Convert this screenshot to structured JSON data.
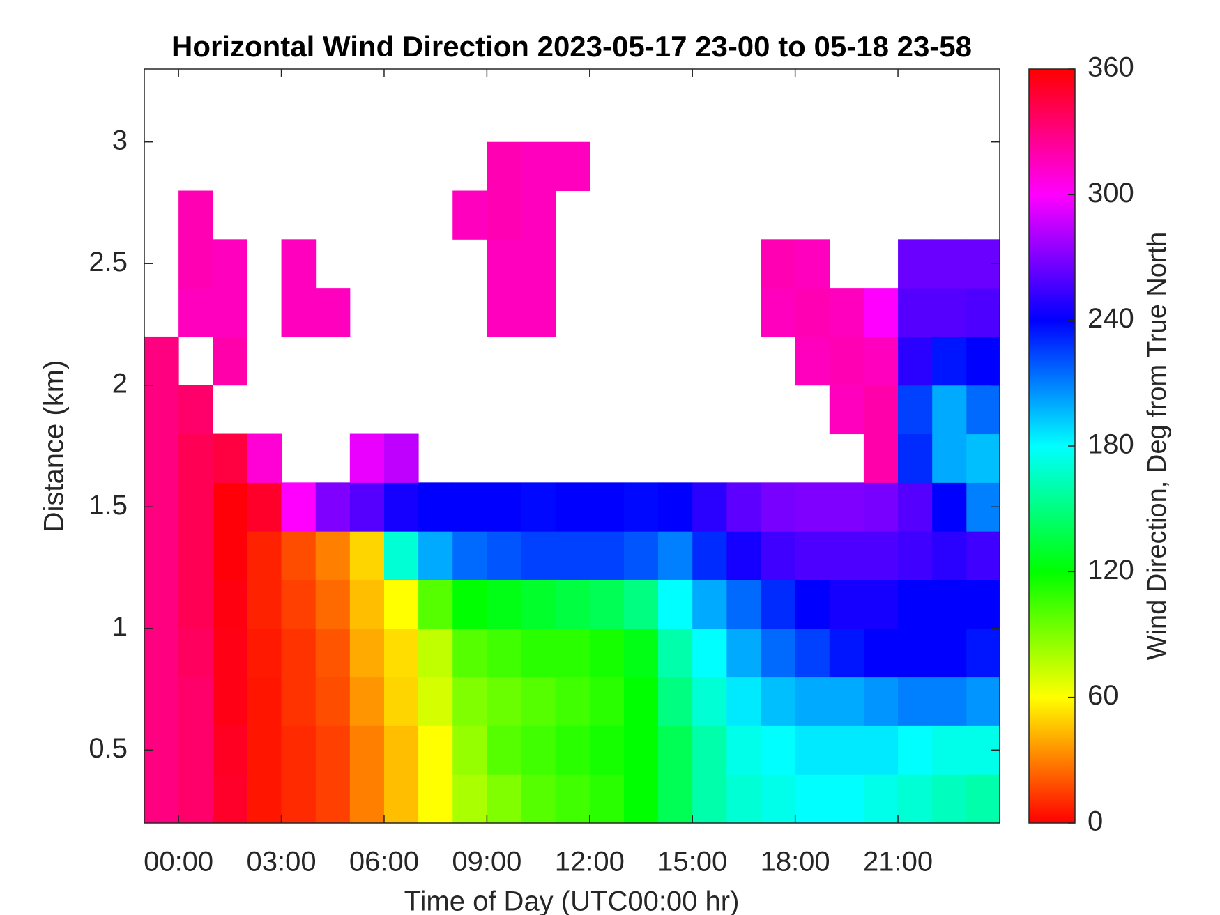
{
  "chart_data": {
    "type": "heatmap",
    "title": "Horizontal Wind Direction 2023-05-17 23-00 to 05-18 23-58",
    "xlabel": "Time of Day (UTC00:00 hr)",
    "ylabel": "Distance (km)",
    "colorbar_label": "Wind Direction, Deg from True North",
    "colormap": "hsv",
    "xlim": [
      -1,
      23.97
    ],
    "ylim": [
      0.2,
      3.3
    ],
    "clim": [
      0,
      360
    ],
    "xticks": [
      {
        "value": 0,
        "label": "00:00"
      },
      {
        "value": 3,
        "label": "03:00"
      },
      {
        "value": 6,
        "label": "06:00"
      },
      {
        "value": 9,
        "label": "09:00"
      },
      {
        "value": 12,
        "label": "12:00"
      },
      {
        "value": 15,
        "label": "15:00"
      },
      {
        "value": 18,
        "label": "18:00"
      },
      {
        "value": 21,
        "label": "21:00"
      }
    ],
    "yticks": [
      0.5,
      1,
      1.5,
      2,
      2.5,
      3
    ],
    "cticks": [
      0,
      60,
      120,
      180,
      240,
      300,
      360
    ],
    "x_edges": [
      -1,
      0,
      1,
      2,
      3,
      4,
      5,
      6,
      7,
      8,
      9,
      10,
      11,
      12,
      13,
      14,
      15,
      16,
      17,
      18,
      19,
      20,
      21,
      22,
      23,
      23.97
    ],
    "y_edges": [
      0.2,
      0.4,
      0.6,
      0.8,
      1,
      1.2,
      1.4,
      1.6,
      1.8,
      2,
      2.2,
      2.4,
      2.6,
      2.8,
      3
    ],
    "z": [
      [
        330,
        335,
        350,
        5,
        10,
        15,
        30,
        45,
        60,
        80,
        90,
        100,
        105,
        110,
        120,
        140,
        160,
        170,
        175,
        180,
        180,
        175,
        170,
        165,
        160
      ],
      [
        330,
        335,
        352,
        5,
        10,
        15,
        30,
        45,
        60,
        85,
        100,
        105,
        110,
        115,
        120,
        140,
        160,
        175,
        180,
        185,
        185,
        185,
        180,
        175,
        175
      ],
      [
        330,
        335,
        355,
        5,
        12,
        18,
        35,
        50,
        70,
        90,
        95,
        100,
        105,
        110,
        120,
        150,
        170,
        185,
        195,
        200,
        200,
        205,
        210,
        210,
        205
      ],
      [
        330,
        338,
        355,
        6,
        12,
        20,
        40,
        52,
        75,
        100,
        105,
        110,
        110,
        115,
        125,
        160,
        180,
        200,
        215,
        225,
        235,
        240,
        240,
        240,
        235
      ],
      [
        330,
        340,
        356,
        8,
        15,
        25,
        45,
        60,
        100,
        120,
        125,
        130,
        135,
        140,
        150,
        180,
        200,
        215,
        230,
        240,
        245,
        245,
        240,
        240,
        240
      ],
      [
        330,
        340,
        358,
        8,
        18,
        30,
        50,
        170,
        200,
        215,
        220,
        225,
        225,
        225,
        220,
        210,
        230,
        245,
        255,
        258,
        258,
        258,
        255,
        250,
        255
      ],
      [
        330,
        340,
        358,
        350,
        300,
        270,
        260,
        245,
        240,
        240,
        240,
        238,
        240,
        240,
        238,
        240,
        250,
        262,
        268,
        270,
        270,
        268,
        260,
        240,
        210
      ],
      [
        330,
        340,
        345,
        310,
        null,
        null,
        295,
        285,
        null,
        null,
        null,
        null,
        null,
        null,
        null,
        null,
        null,
        null,
        null,
        null,
        null,
        320,
        230,
        200,
        195
      ],
      [
        330,
        335,
        null,
        null,
        null,
        null,
        null,
        null,
        null,
        null,
        null,
        null,
        null,
        null,
        null,
        null,
        null,
        null,
        null,
        null,
        315,
        320,
        225,
        200,
        215
      ],
      [
        330,
        null,
        320,
        null,
        null,
        null,
        null,
        null,
        null,
        null,
        null,
        null,
        null,
        null,
        null,
        null,
        null,
        null,
        null,
        315,
        318,
        315,
        250,
        235,
        240
      ],
      [
        null,
        315,
        315,
        null,
        315,
        315,
        null,
        null,
        null,
        null,
        315,
        315,
        null,
        null,
        null,
        null,
        null,
        null,
        315,
        318,
        315,
        300,
        260,
        260,
        258
      ],
      [
        null,
        318,
        315,
        null,
        315,
        null,
        null,
        null,
        null,
        null,
        315,
        315,
        null,
        null,
        null,
        null,
        null,
        null,
        318,
        315,
        null,
        null,
        265,
        265,
        265
      ],
      [
        null,
        318,
        null,
        null,
        null,
        null,
        null,
        null,
        null,
        315,
        318,
        315,
        null,
        null,
        null,
        null,
        null,
        null,
        null,
        null,
        null,
        null,
        null,
        null,
        null
      ],
      [
        null,
        null,
        null,
        null,
        null,
        null,
        null,
        null,
        null,
        null,
        318,
        315,
        315,
        null,
        null,
        null,
        null,
        null,
        null,
        null,
        null,
        null,
        null,
        null,
        null
      ]
    ]
  }
}
